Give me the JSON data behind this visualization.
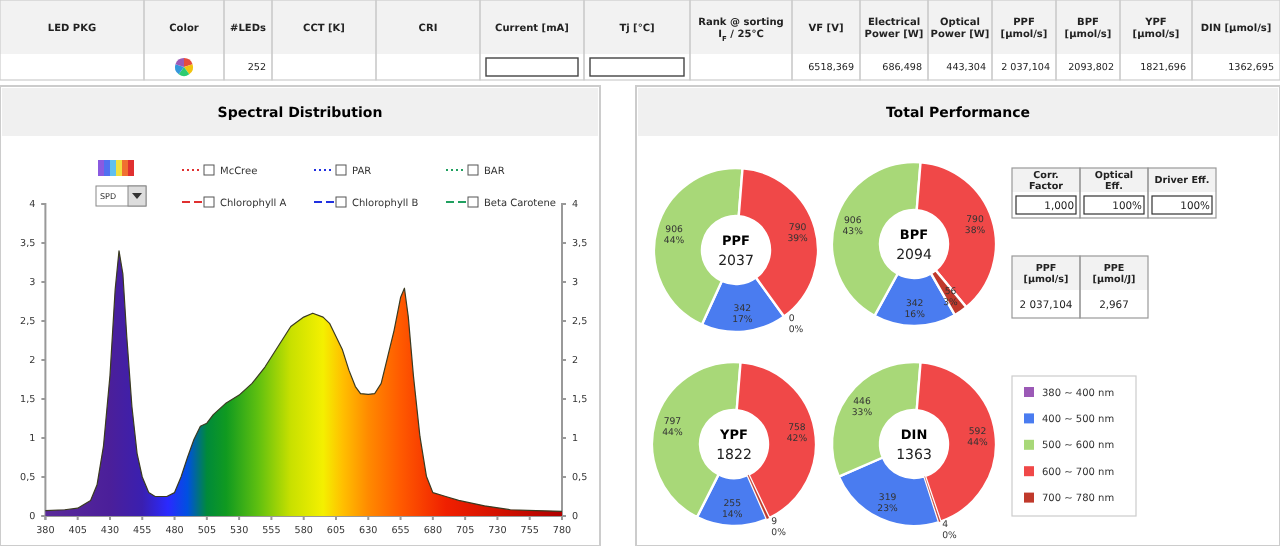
{
  "chart_data": [
    {
      "type": "other",
      "categories": [
        "LED PKG",
        "Color",
        "#LEDs",
        "CCT [K]",
        "CRI",
        "Current [mA]",
        "Tj [°C]",
        "Rank @ sorting I$_{F}$ / 25°C",
        "VF [V]",
        "Electrical Power [W]",
        "Optical Power [W]",
        "PPF [μmol/s]",
        "BPF [μmol/s]",
        "YPF [μmol/s]",
        "DIN [μmol/s]"
      ],
      "value_labels": [
        null,
        null,
        "252",
        null,
        null,
        null,
        null,
        null,
        "6518,369",
        "686,498",
        "443,304",
        "2 037,104",
        "2093,802",
        "1821,696",
        "1362,695"
      ]
    },
    {
      "type": "area",
      "title": "Spectral Distribution",
      "annotations": [
        "SPD"
      ],
      "legend": "top",
      "xlim": [
        380,
        780
      ],
      "xticks": [
        380,
        405,
        430,
        455,
        480,
        505,
        530,
        555,
        580,
        605,
        630,
        655,
        680,
        705,
        730,
        755,
        780
      ],
      "ylim": [
        0,
        4
      ],
      "yticks": [
        0,
        {
          "value": 0.5,
          "label": "0,5"
        },
        1,
        {
          "value": 1.5,
          "label": "1,5"
        },
        2,
        {
          "value": 2.5,
          "label": "2,5"
        },
        3,
        {
          "value": 3.5,
          "label": "3,5"
        },
        4
      ],
      "y2lim": [
        0,
        4
      ],
      "y2ticks": [
        0,
        {
          "value": 0.5,
          "label": "0,5"
        },
        1,
        {
          "value": 1.5,
          "label": "1,5"
        },
        2,
        {
          "value": 2.5,
          "label": "2,5"
        },
        3,
        {
          "value": 3.5,
          "label": "3,5"
        },
        4
      ],
      "x": [
        380,
        395,
        405,
        415,
        420,
        425,
        430,
        434,
        437,
        440,
        443,
        447,
        451,
        455,
        460,
        465,
        470,
        474,
        480,
        485,
        490,
        495,
        500,
        505,
        510,
        520,
        530,
        540,
        550,
        560,
        570,
        580,
        587,
        595,
        600,
        610,
        615,
        620,
        624,
        630,
        635,
        640,
        645,
        650,
        655,
        658,
        661,
        665,
        670,
        675,
        680,
        690,
        700,
        720,
        740,
        760,
        780
      ],
      "series": [
        {
          "type": "area",
          "color": "#3a3a20",
          "values": [
            0.07,
            0.08,
            0.1,
            0.2,
            0.4,
            0.9,
            1.8,
            2.9,
            3.4,
            3.1,
            2.3,
            1.4,
            0.8,
            0.5,
            0.3,
            0.25,
            0.25,
            0.25,
            0.3,
            0.5,
            0.75,
            0.98,
            1.15,
            1.19,
            1.3,
            1.45,
            1.55,
            1.7,
            1.91,
            2.17,
            2.43,
            2.55,
            2.6,
            2.55,
            2.47,
            2.13,
            1.87,
            1.66,
            1.57,
            1.56,
            1.57,
            1.7,
            2.04,
            2.38,
            2.8,
            2.92,
            2.55,
            1.79,
            1.02,
            0.51,
            0.3,
            0.25,
            0.2,
            0.13,
            0.08,
            0.07,
            0.06
          ]
        },
        {
          "type": "line",
          "name": "McCree",
          "color": "#e03030",
          "line_style": "dotted",
          "values": [
            null,
            null,
            null,
            null,
            null,
            null,
            null,
            null,
            null,
            null,
            null,
            null,
            null,
            null,
            null,
            null,
            null,
            null,
            null,
            null,
            null,
            null,
            null,
            null,
            null,
            null,
            null,
            null,
            null,
            null,
            null,
            null,
            null,
            null,
            null,
            null,
            null,
            null,
            null,
            null,
            null,
            null,
            null,
            null,
            null,
            null,
            null,
            null,
            null,
            null,
            null,
            null,
            null,
            null,
            null,
            null,
            null
          ]
        },
        {
          "type": "line",
          "name": "PAR",
          "color": "#2030e0",
          "line_style": "dotted",
          "values": [
            null,
            null,
            null,
            null,
            null,
            null,
            null,
            null,
            null,
            null,
            null,
            null,
            null,
            null,
            null,
            null,
            null,
            null,
            null,
            null,
            null,
            null,
            null,
            null,
            null,
            null,
            null,
            null,
            null,
            null,
            null,
            null,
            null,
            null,
            null,
            null,
            null,
            null,
            null,
            null,
            null,
            null,
            null,
            null,
            null,
            null,
            null,
            null,
            null,
            null,
            null,
            null,
            null,
            null,
            null,
            null,
            null
          ]
        },
        {
          "type": "line",
          "name": "BAR",
          "color": "#20a060",
          "line_style": "dotted",
          "values": [
            null,
            null,
            null,
            null,
            null,
            null,
            null,
            null,
            null,
            null,
            null,
            null,
            null,
            null,
            null,
            null,
            null,
            null,
            null,
            null,
            null,
            null,
            null,
            null,
            null,
            null,
            null,
            null,
            null,
            null,
            null,
            null,
            null,
            null,
            null,
            null,
            null,
            null,
            null,
            null,
            null,
            null,
            null,
            null,
            null,
            null,
            null,
            null,
            null,
            null,
            null,
            null,
            null,
            null,
            null,
            null,
            null
          ]
        },
        {
          "type": "line",
          "name": "Chlorophyll A",
          "color": "#e03030",
          "line_style": "dashed",
          "values": [
            null,
            null,
            null,
            null,
            null,
            null,
            null,
            null,
            null,
            null,
            null,
            null,
            null,
            null,
            null,
            null,
            null,
            null,
            null,
            null,
            null,
            null,
            null,
            null,
            null,
            null,
            null,
            null,
            null,
            null,
            null,
            null,
            null,
            null,
            null,
            null,
            null,
            null,
            null,
            null,
            null,
            null,
            null,
            null,
            null,
            null,
            null,
            null,
            null,
            null,
            null,
            null,
            null,
            null,
            null,
            null,
            null
          ]
        },
        {
          "type": "line",
          "name": "Chlorophyll B",
          "color": "#2030e0",
          "line_style": "dashed",
          "values": [
            null,
            null,
            null,
            null,
            null,
            null,
            null,
            null,
            null,
            null,
            null,
            null,
            null,
            null,
            null,
            null,
            null,
            null,
            null,
            null,
            null,
            null,
            null,
            null,
            null,
            null,
            null,
            null,
            null,
            null,
            null,
            null,
            null,
            null,
            null,
            null,
            null,
            null,
            null,
            null,
            null,
            null,
            null,
            null,
            null,
            null,
            null,
            null,
            null,
            null,
            null,
            null,
            null,
            null,
            null,
            null,
            null
          ]
        },
        {
          "type": "line",
          "name": "Beta Carotene",
          "color": "#20a060",
          "line_style": "dashed",
          "values": [
            null,
            null,
            null,
            null,
            null,
            null,
            null,
            null,
            null,
            null,
            null,
            null,
            null,
            null,
            null,
            null,
            null,
            null,
            null,
            null,
            null,
            null,
            null,
            null,
            null,
            null,
            null,
            null,
            null,
            null,
            null,
            null,
            null,
            null,
            null,
            null,
            null,
            null,
            null,
            null,
            null,
            null,
            null,
            null,
            null,
            null,
            null,
            null,
            null,
            null,
            null,
            null,
            null,
            null,
            null,
            null,
            null
          ]
        }
      ]
    },
    {
      "type": "other",
      "title": "Total Performance",
      "categories": [
        "Corr. Factor",
        "Optical Eff.",
        "Driver Eff."
      ],
      "value_labels": [
        "1,000",
        "100%",
        "100%"
      ]
    },
    {
      "type": "other",
      "categories": [
        "PPF [μmol/s]",
        "PPE [μmol/J]"
      ],
      "value_labels": [
        "2 037,104",
        "2,967"
      ]
    },
    {
      "type": "donut",
      "legend": "right",
      "categories": [
        "380 ~ 400 nm",
        "400 ~ 500 nm",
        "500 ~ 600 nm",
        "600 ~ 700 nm",
        "700 ~ 780 nm"
      ],
      "colors": [
        "#9b59b6",
        "#4a7cf0",
        "#a8d878",
        "#f04848",
        "#c0392b"
      ],
      "totals": [
        "2037",
        "2094",
        "1822",
        "1363"
      ],
      "series": [
        {
          "name": "PPF",
          "values": [
            0,
            342,
            906,
            790,
            0
          ],
          "value_labels": [
            null,
            "342\n17%",
            "906\n44%",
            "790\n39%",
            "0\n0%"
          ]
        },
        {
          "name": "BPF",
          "values": [
            0,
            342,
            906,
            790,
            56
          ],
          "value_labels": [
            null,
            "342\n16%",
            "906\n43%",
            "790\n38%",
            "56\n3%"
          ]
        },
        {
          "name": "YPF",
          "values": [
            0,
            255,
            797,
            758,
            9
          ],
          "value_labels": [
            null,
            "255\n14%",
            "797\n44%",
            "758\n42%",
            "9\n0%"
          ]
        },
        {
          "name": "DIN",
          "values": [
            0,
            319,
            446,
            592,
            4
          ],
          "value_labels": [
            null,
            "319\n23%",
            "446\n33%",
            "592\n44%",
            "4\n0%"
          ]
        }
      ]
    }
  ]
}
